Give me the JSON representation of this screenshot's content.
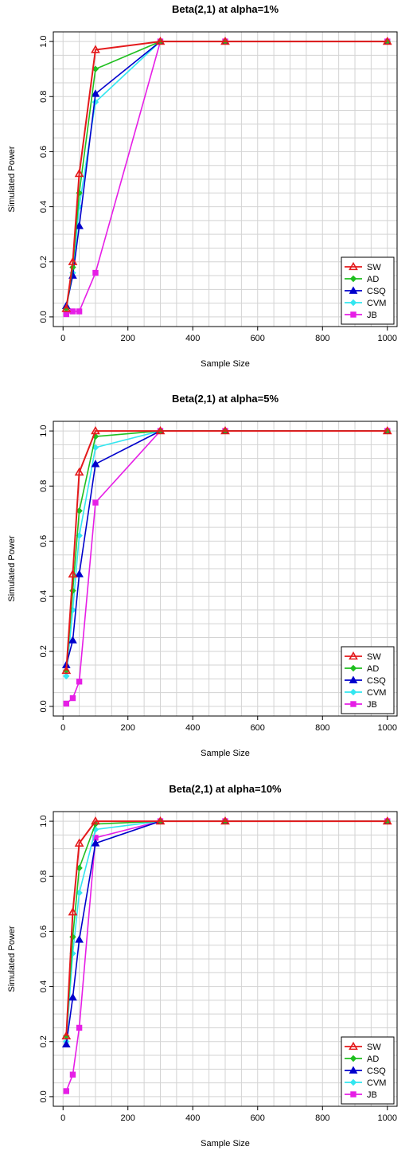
{
  "chart_data": [
    {
      "type": "line",
      "title": "Beta(2,1) at alpha=1%",
      "xlabel": "Sample Size",
      "ylabel": "Simulated Power",
      "xlim": [
        0,
        1000
      ],
      "ylim": [
        0,
        1
      ],
      "xticks": [
        0,
        200,
        400,
        600,
        800,
        1000
      ],
      "yticks": [
        0.0,
        0.2,
        0.4,
        0.6,
        0.8,
        1.0
      ],
      "grid": true,
      "legend_position": "bottom-right",
      "x": [
        10,
        30,
        50,
        100,
        300,
        500,
        1000
      ],
      "series": [
        {
          "name": "SW",
          "color": "#e41a1c",
          "marker": "triangle-open",
          "values": [
            0.03,
            0.2,
            0.52,
            0.97,
            1.0,
            1.0,
            1.0
          ]
        },
        {
          "name": "AD",
          "color": "#1fbf1f",
          "marker": "diamond",
          "values": [
            0.03,
            0.18,
            0.45,
            0.9,
            1.0,
            1.0,
            1.0
          ]
        },
        {
          "name": "CSQ",
          "color": "#0000cc",
          "marker": "triangle",
          "values": [
            0.04,
            0.15,
            0.33,
            0.81,
            1.0,
            1.0,
            1.0
          ]
        },
        {
          "name": "CVM",
          "color": "#33e6f0",
          "marker": "diamond",
          "values": [
            0.03,
            0.16,
            0.4,
            0.78,
            1.0,
            1.0,
            1.0
          ]
        },
        {
          "name": "JB",
          "color": "#e61ee6",
          "marker": "square",
          "values": [
            0.01,
            0.02,
            0.02,
            0.16,
            1.0,
            1.0,
            1.0
          ]
        }
      ]
    },
    {
      "type": "line",
      "title": "Beta(2,1) at alpha=5%",
      "xlabel": "Sample Size",
      "ylabel": "Simulated Power",
      "xlim": [
        0,
        1000
      ],
      "ylim": [
        0,
        1
      ],
      "xticks": [
        0,
        200,
        400,
        600,
        800,
        1000
      ],
      "yticks": [
        0.0,
        0.2,
        0.4,
        0.6,
        0.8,
        1.0
      ],
      "grid": true,
      "legend_position": "bottom-right",
      "x": [
        10,
        30,
        50,
        100,
        300,
        500,
        1000
      ],
      "series": [
        {
          "name": "SW",
          "color": "#e41a1c",
          "marker": "triangle-open",
          "values": [
            0.13,
            0.48,
            0.85,
            1.0,
            1.0,
            1.0,
            1.0
          ]
        },
        {
          "name": "AD",
          "color": "#1fbf1f",
          "marker": "diamond",
          "values": [
            0.13,
            0.42,
            0.71,
            0.98,
            1.0,
            1.0,
            1.0
          ]
        },
        {
          "name": "CSQ",
          "color": "#0000cc",
          "marker": "triangle",
          "values": [
            0.15,
            0.24,
            0.48,
            0.88,
            1.0,
            1.0,
            1.0
          ]
        },
        {
          "name": "CVM",
          "color": "#33e6f0",
          "marker": "diamond",
          "values": [
            0.11,
            0.35,
            0.62,
            0.94,
            1.0,
            1.0,
            1.0
          ]
        },
        {
          "name": "JB",
          "color": "#e61ee6",
          "marker": "square",
          "values": [
            0.01,
            0.03,
            0.09,
            0.74,
            1.0,
            1.0,
            1.0
          ]
        }
      ]
    },
    {
      "type": "line",
      "title": "Beta(2,1) at alpha=10%",
      "xlabel": "Sample Size",
      "ylabel": "Simulated Power",
      "xlim": [
        0,
        1000
      ],
      "ylim": [
        0,
        1
      ],
      "xticks": [
        0,
        200,
        400,
        600,
        800,
        1000
      ],
      "yticks": [
        0.0,
        0.2,
        0.4,
        0.6,
        0.8,
        1.0
      ],
      "grid": true,
      "legend_position": "bottom-right",
      "x": [
        10,
        30,
        50,
        100,
        300,
        500,
        1000
      ],
      "series": [
        {
          "name": "SW",
          "color": "#e41a1c",
          "marker": "triangle-open",
          "values": [
            0.22,
            0.67,
            0.92,
            1.0,
            1.0,
            1.0,
            1.0
          ]
        },
        {
          "name": "AD",
          "color": "#1fbf1f",
          "marker": "diamond",
          "values": [
            0.22,
            0.58,
            0.83,
            0.99,
            1.0,
            1.0,
            1.0
          ]
        },
        {
          "name": "CSQ",
          "color": "#0000cc",
          "marker": "triangle",
          "values": [
            0.19,
            0.36,
            0.57,
            0.92,
            1.0,
            1.0,
            1.0
          ]
        },
        {
          "name": "CVM",
          "color": "#33e6f0",
          "marker": "diamond",
          "values": [
            0.2,
            0.52,
            0.74,
            0.97,
            1.0,
            1.0,
            1.0
          ]
        },
        {
          "name": "JB",
          "color": "#e61ee6",
          "marker": "square",
          "values": [
            0.02,
            0.08,
            0.25,
            0.94,
            1.0,
            1.0,
            1.0
          ]
        }
      ]
    }
  ]
}
